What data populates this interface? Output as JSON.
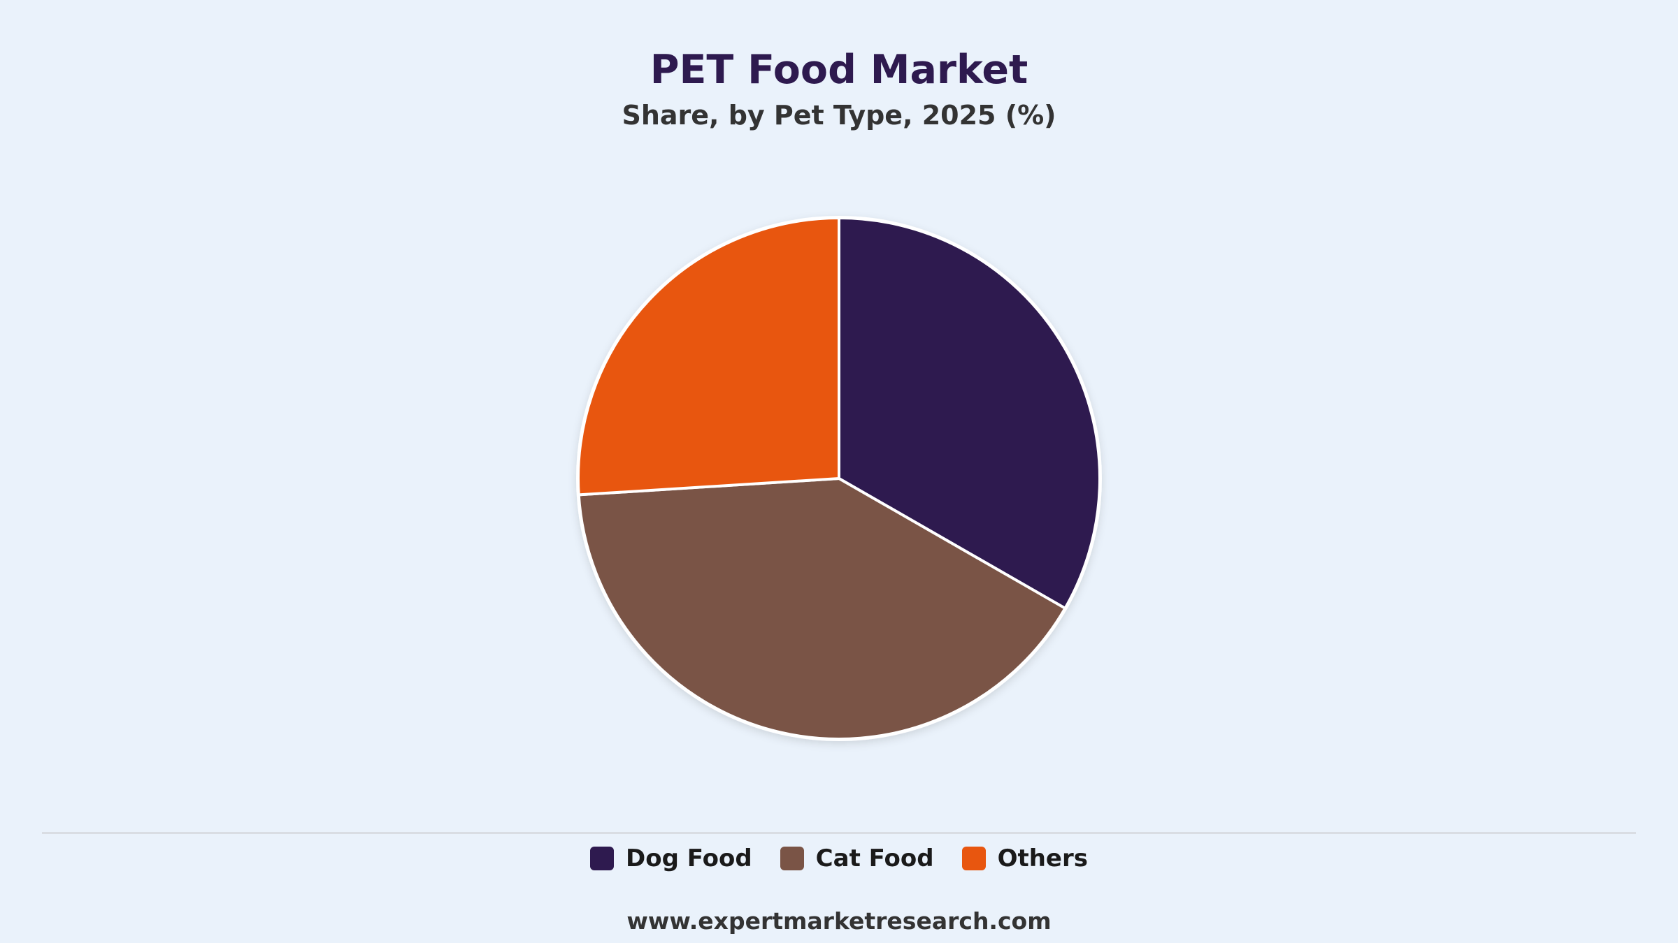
{
  "chart_data": {
    "type": "pie",
    "title": "PET Food Market",
    "subtitle": "Share, by Pet Type, 2025 (%)",
    "categories": [
      "Dog Food",
      "Cat Food",
      "Others"
    ],
    "values": [
      33.3,
      40.7,
      26.0
    ],
    "colors": [
      "#2e1a4f",
      "#7a5446",
      "#e8560f"
    ],
    "legend_position": "bottom"
  },
  "footer": {
    "source": "www.expertmarketresearch.com"
  }
}
